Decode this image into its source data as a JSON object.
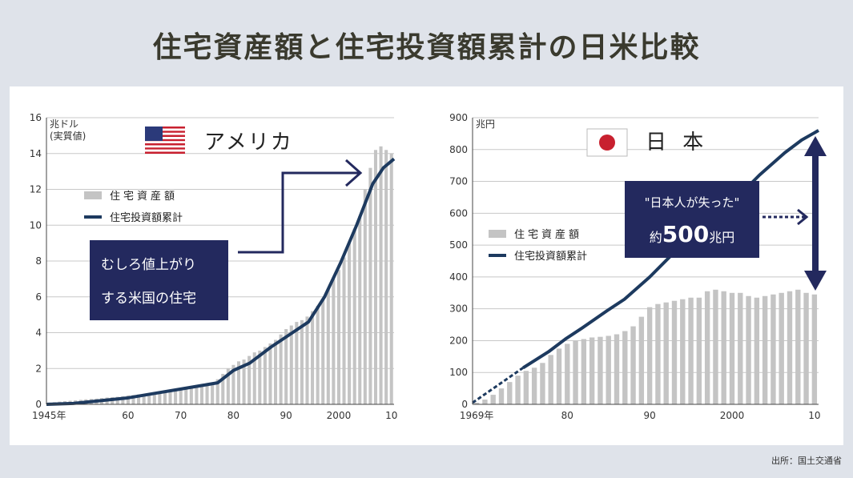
{
  "title": "住宅資産額と住宅投資額累計の日米比較",
  "source": "出所：国土交通省",
  "colors": {
    "navy": "#1d3a5f",
    "bar": "#c4c4c4",
    "annotation_bg": "#23295e"
  },
  "chart_data": [
    {
      "type": "bar",
      "country": "アメリカ",
      "unit": "兆ドル\n(実質値)",
      "ylim": [
        0,
        16
      ],
      "yticks": [
        0,
        2,
        4,
        6,
        8,
        10,
        12,
        14,
        16
      ],
      "xlim": [
        1945,
        2010
      ],
      "xtick_labels": [
        {
          "x": 1945,
          "label": "1945年"
        },
        {
          "x": 1960,
          "label": "60"
        },
        {
          "x": 1970,
          "label": "70"
        },
        {
          "x": 1980,
          "label": "80"
        },
        {
          "x": 1990,
          "label": "90"
        },
        {
          "x": 2000,
          "label": "2000"
        },
        {
          "x": 2010,
          "label": "10"
        }
      ],
      "legend": {
        "bar": "住宅資産額",
        "line": "住宅投資額累計"
      },
      "grid": true,
      "annotation": [
        "むしろ値上がり",
        "する米国の住宅"
      ],
      "series": [
        {
          "name": "住宅資産額",
          "type": "bar",
          "x": [
            1945,
            1946,
            1947,
            1948,
            1949,
            1950,
            1951,
            1952,
            1953,
            1954,
            1955,
            1956,
            1957,
            1958,
            1959,
            1960,
            1961,
            1962,
            1963,
            1964,
            1965,
            1966,
            1967,
            1968,
            1969,
            1970,
            1971,
            1972,
            1973,
            1974,
            1975,
            1976,
            1977,
            1978,
            1979,
            1980,
            1981,
            1982,
            1983,
            1984,
            1985,
            1986,
            1987,
            1988,
            1989,
            1990,
            1991,
            1992,
            1993,
            1994,
            1995,
            1996,
            1997,
            1998,
            1999,
            2000,
            2001,
            2002,
            2003,
            2004,
            2005,
            2006,
            2007,
            2008,
            2009,
            2010
          ],
          "values": [
            0.1,
            0.12,
            0.15,
            0.18,
            0.2,
            0.22,
            0.25,
            0.28,
            0.3,
            0.32,
            0.35,
            0.38,
            0.4,
            0.42,
            0.45,
            0.5,
            0.52,
            0.55,
            0.58,
            0.6,
            0.65,
            0.7,
            0.72,
            0.75,
            0.8,
            0.85,
            0.9,
            0.95,
            1.0,
            1.05,
            1.1,
            1.2,
            1.4,
            1.7,
            2.0,
            2.2,
            2.4,
            2.5,
            2.7,
            2.9,
            3.0,
            3.2,
            3.4,
            3.6,
            3.9,
            4.2,
            4.4,
            4.6,
            4.7,
            4.9,
            5.2,
            5.5,
            5.9,
            6.4,
            7.0,
            7.5,
            8.2,
            9.0,
            9.8,
            10.5,
            12.0,
            13.2,
            14.2,
            14.4,
            14.2,
            14.0
          ]
        },
        {
          "name": "住宅投資額累計",
          "type": "line",
          "x": [
            1945,
            1950,
            1955,
            1960,
            1965,
            1970,
            1975,
            1977,
            1980,
            1983,
            1987,
            1990,
            1994,
            1997,
            2000,
            2003,
            2006,
            2008,
            2010
          ],
          "values": [
            0,
            0.05,
            0.2,
            0.35,
            0.6,
            0.85,
            1.1,
            1.2,
            1.9,
            2.3,
            3.2,
            3.8,
            4.6,
            6.0,
            7.9,
            10.0,
            12.3,
            13.2,
            13.7
          ]
        }
      ]
    },
    {
      "type": "bar",
      "country": "日 本",
      "unit": "兆円",
      "ylim": [
        0,
        900
      ],
      "yticks": [
        0,
        100,
        200,
        300,
        400,
        500,
        600,
        700,
        800,
        900
      ],
      "xlim": [
        1969,
        2010
      ],
      "xtick_labels": [
        {
          "x": 1969,
          "label": "1969年"
        },
        {
          "x": 1980,
          "label": "80"
        },
        {
          "x": 1990,
          "label": "90"
        },
        {
          "x": 2000,
          "label": "2000"
        },
        {
          "x": 2010,
          "label": "10"
        }
      ],
      "legend": {
        "bar": "住宅資産額",
        "line": "住宅投資額累計"
      },
      "grid": true,
      "annotation": {
        "quote": "\"日本人が失った\"",
        "prefix": "約",
        "amount": "500",
        "unit": "兆円"
      },
      "series": [
        {
          "name": "住宅資産額",
          "type": "bar",
          "x": [
            1969,
            1970,
            1971,
            1972,
            1973,
            1974,
            1975,
            1976,
            1977,
            1978,
            1979,
            1980,
            1981,
            1982,
            1983,
            1984,
            1985,
            1986,
            1987,
            1988,
            1989,
            1990,
            1991,
            1992,
            1993,
            1994,
            1995,
            1996,
            1997,
            1998,
            1999,
            2000,
            2001,
            2002,
            2003,
            2004,
            2005,
            2006,
            2007,
            2008,
            2009,
            2010
          ],
          "values": [
            5,
            15,
            30,
            50,
            70,
            90,
            105,
            115,
            130,
            155,
            175,
            190,
            200,
            205,
            210,
            212,
            215,
            220,
            230,
            245,
            275,
            305,
            315,
            320,
            325,
            330,
            335,
            335,
            355,
            360,
            355,
            350,
            350,
            340,
            335,
            340,
            345,
            350,
            355,
            360,
            350,
            345
          ]
        },
        {
          "name": "住宅投資額累計",
          "type": "line",
          "x": [
            1969,
            1972,
            1975,
            1978,
            1980,
            1982,
            1985,
            1987,
            1990,
            1993,
            1995,
            1998,
            2000,
            2003,
            2006,
            2008,
            2010
          ],
          "values": [
            5,
            60,
            115,
            165,
            205,
            240,
            295,
            330,
            400,
            480,
            530,
            600,
            640,
            720,
            790,
            830,
            860
          ]
        }
      ]
    }
  ]
}
